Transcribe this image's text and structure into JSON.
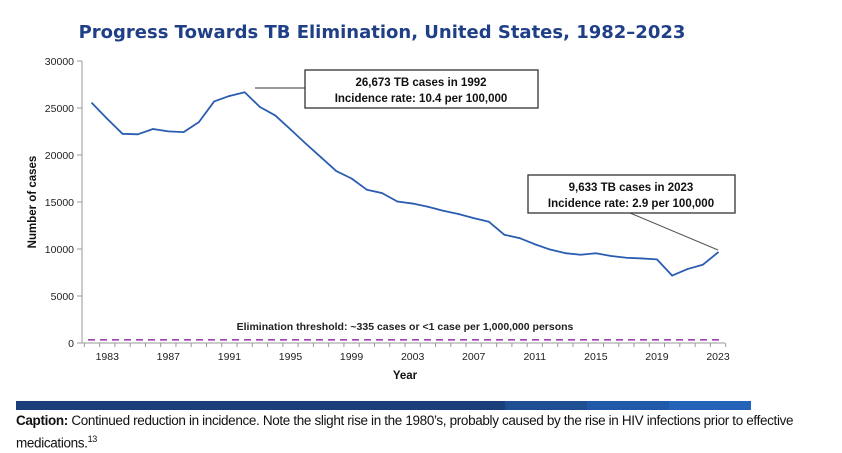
{
  "chart_data": {
    "type": "line",
    "title": "Progress Towards TB Elimination, United States, 1982–2023",
    "xlabel": "Year",
    "ylabel": "Number of cases",
    "xlim": [
      1982,
      2023
    ],
    "ylim": [
      0,
      30000
    ],
    "yticks": [
      0,
      5000,
      10000,
      15000,
      20000,
      25000,
      30000
    ],
    "xticks": [
      1983,
      1987,
      1991,
      1995,
      1999,
      2003,
      2007,
      2011,
      2015,
      2019,
      2023
    ],
    "grid": false,
    "x": [
      1982,
      1983,
      1984,
      1985,
      1986,
      1987,
      1988,
      1989,
      1990,
      1991,
      1992,
      1993,
      1994,
      1995,
      1996,
      1997,
      1998,
      1999,
      2000,
      2001,
      2002,
      2003,
      2004,
      2005,
      2006,
      2007,
      2008,
      2009,
      2010,
      2011,
      2012,
      2013,
      2014,
      2015,
      2016,
      2017,
      2018,
      2019,
      2020,
      2021,
      2022,
      2023
    ],
    "series": [
      {
        "values": [
          25520,
          23846,
          22255,
          22201,
          22768,
          22517,
          22436,
          23495,
          25701,
          26283,
          26673,
          25107,
          24206,
          22727,
          21210,
          19751,
          18287,
          17500,
          16309,
          15945,
          15055,
          14835,
          14499,
          14065,
          13727,
          13282,
          12895,
          11520,
          11161,
          10509,
          9941,
          9556,
          9388,
          9547,
          9252,
          9070,
          8994,
          8900,
          7170,
          7866,
          8320,
          9633
        ],
        "color": "#2a5db0"
      }
    ],
    "threshold": {
      "value": 335,
      "label": "Elimination threshold:  ~335 cases or <1 case per 1,000,000 persons",
      "color": "#a040b0"
    },
    "annotations": [
      {
        "year": 1992,
        "lines": [
          "26,673 TB cases in 1992",
          "Incidence rate: 10.4 per 100,000"
        ]
      },
      {
        "year": 2023,
        "lines": [
          "9,633 TB cases in 2023",
          "Incidence rate: 2.9 per 100,000"
        ]
      }
    ]
  },
  "caption": {
    "label": "Caption:",
    "text": " Continued reduction in incidence. Note the slight rise in the 1980’s, probably caused by the rise in HIV infections prior to effective medications.",
    "ref": "13"
  },
  "colors": {
    "title": "#1f3f86",
    "bar": [
      "#1a3f7a",
      "#1f4f93",
      "#2059a8",
      "#2563b8"
    ]
  }
}
